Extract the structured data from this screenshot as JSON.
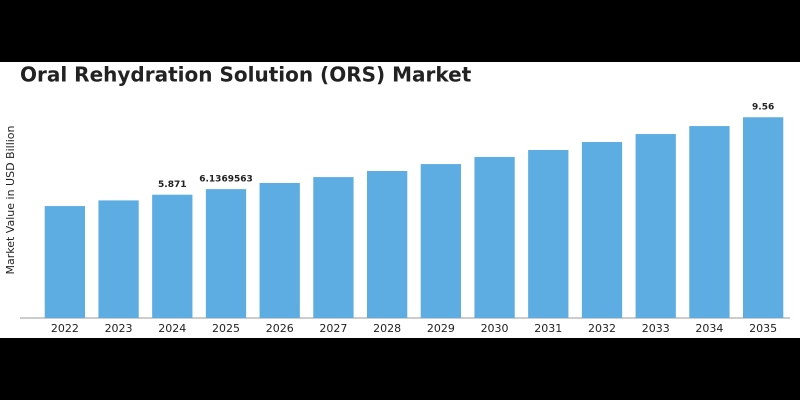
{
  "chart_data": {
    "type": "bar",
    "title": "Oral Rehydration Solution (ORS) Market",
    "y_label": "Market Value in USD Billion",
    "categories": [
      "2022",
      "2023",
      "2024",
      "2025",
      "2026",
      "2027",
      "2028",
      "2029",
      "2030",
      "2031",
      "2032",
      "2033",
      "2034",
      "2035"
    ],
    "values": [
      5.33,
      5.6,
      5.871,
      6.1369563,
      6.43,
      6.71,
      7.0,
      7.33,
      7.67,
      8.0,
      8.38,
      8.76,
      9.14,
      9.56
    ],
    "value_labels": [
      null,
      null,
      "5.871",
      "6.1369563",
      null,
      null,
      null,
      null,
      null,
      null,
      null,
      null,
      null,
      "9.56"
    ],
    "color": "#5dade2",
    "ylim": [
      0,
      10
    ]
  }
}
